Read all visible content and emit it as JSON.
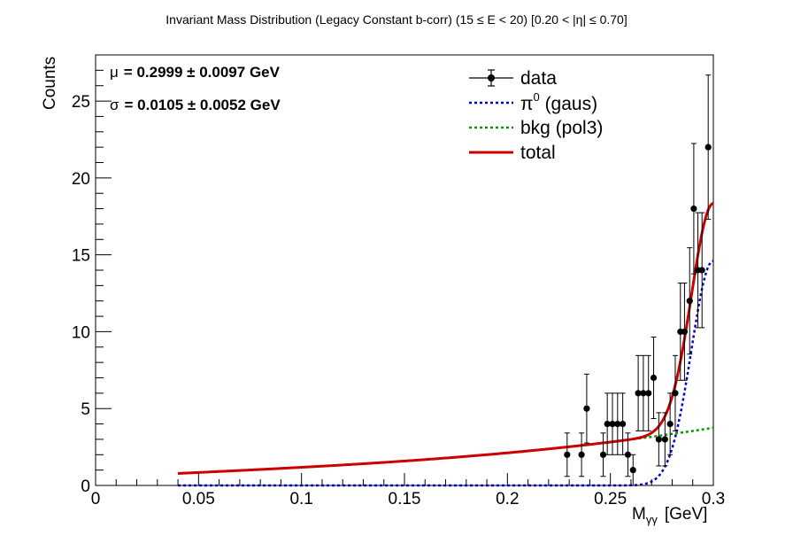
{
  "chart_data": {
    "type": "scatter",
    "title": "Invariant Mass Distribution (Legacy Constant b-corr)   (15 ≤ E < 20)   [0.20 < |η| ≤ 0.70]",
    "xlabel": "M",
    "xlabel_sub": "γγ",
    "xlabel_unit": "[GeV]",
    "ylabel": "Counts",
    "xlim": [
      0,
      0.3
    ],
    "ylim": [
      0,
      28
    ],
    "x_ticks": [
      "0",
      "0.05",
      "0.1",
      "0.15",
      "0.2",
      "0.25",
      "0.3"
    ],
    "y_ticks": [
      "0",
      "5",
      "10",
      "15",
      "20",
      "25"
    ],
    "stats": {
      "mu_label": "μ",
      "mu_value": "= 0.2999  ± 0.0097 GeV",
      "sigma_label": "σ",
      "sigma_value": "= 0.0105  ± 0.0052 GeV"
    },
    "legend": {
      "position": "top-right",
      "data": "data",
      "pi0": "π",
      "pi0_sup": "0",
      "pi0_rest": " (gaus)",
      "bkg": "bkg (pol3)",
      "total": "total"
    },
    "colors": {
      "data": "#000000",
      "pi0": "#0000cc",
      "bkg": "#009900",
      "total": "#cc0000"
    },
    "series": [
      {
        "name": "data",
        "points": [
          {
            "x": 0.229,
            "y": 2,
            "err": 1.41
          },
          {
            "x": 0.236,
            "y": 2,
            "err": 1.41
          },
          {
            "x": 0.2385,
            "y": 5,
            "err": 2.24
          },
          {
            "x": 0.2465,
            "y": 2,
            "err": 1.41
          },
          {
            "x": 0.2485,
            "y": 4,
            "err": 2.0
          },
          {
            "x": 0.251,
            "y": 4,
            "err": 2.0
          },
          {
            "x": 0.2535,
            "y": 4,
            "err": 2.0
          },
          {
            "x": 0.256,
            "y": 4,
            "err": 2.0
          },
          {
            "x": 0.2585,
            "y": 2,
            "err": 1.41
          },
          {
            "x": 0.261,
            "y": 1,
            "err": 1.0
          },
          {
            "x": 0.2635,
            "y": 6,
            "err": 2.45
          },
          {
            "x": 0.266,
            "y": 6,
            "err": 2.45
          },
          {
            "x": 0.2685,
            "y": 6,
            "err": 2.45
          },
          {
            "x": 0.271,
            "y": 7,
            "err": 2.65
          },
          {
            "x": 0.2735,
            "y": 3,
            "err": 1.73
          },
          {
            "x": 0.2765,
            "y": 3,
            "err": 1.73
          },
          {
            "x": 0.279,
            "y": 4,
            "err": 2.0
          },
          {
            "x": 0.2815,
            "y": 6,
            "err": 2.45
          },
          {
            "x": 0.284,
            "y": 10,
            "err": 3.16
          },
          {
            "x": 0.286,
            "y": 10,
            "err": 3.16
          },
          {
            "x": 0.2885,
            "y": 12,
            "err": 3.46
          },
          {
            "x": 0.2905,
            "y": 18,
            "err": 4.24
          },
          {
            "x": 0.2925,
            "y": 14,
            "err": 3.74
          },
          {
            "x": 0.2945,
            "y": 14,
            "err": 3.74
          },
          {
            "x": 0.2975,
            "y": 22,
            "err": 4.69
          }
        ]
      }
    ],
    "fit": {
      "range": [
        0.04,
        0.3
      ],
      "pi0": {
        "amplitude": 14.6,
        "mean": 0.2999,
        "sigma": 0.0105
      },
      "bkg": {
        "x0": 0.04,
        "x1": 0.3,
        "y0": 0.78,
        "y1": 3.75,
        "shape": "pol3"
      }
    }
  }
}
